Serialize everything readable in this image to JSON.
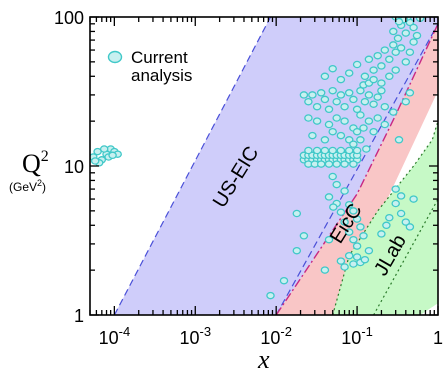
{
  "chart_data": {
    "type": "scatter",
    "x_scale": "log",
    "y_scale": "log",
    "xlim": [
      5e-05,
      1
    ],
    "ylim": [
      1,
      100
    ],
    "xlabel": "x",
    "ylabel": "Q",
    "ylabel_superscript": "2",
    "ylabel_units": "(GeV",
    "ylabel_units_superscript": "2",
    "ylabel_units_close": ")",
    "x_ticks": [
      {
        "value": 0.0001,
        "base": "10",
        "exp": "-4"
      },
      {
        "value": 0.001,
        "base": "10",
        "exp": "-3"
      },
      {
        "value": 0.01,
        "base": "10",
        "exp": "-2"
      },
      {
        "value": 0.1,
        "base": "10",
        "exp": "-1"
      },
      {
        "value": 1,
        "base": "1",
        "exp": ""
      }
    ],
    "y_ticks": [
      {
        "value": 1,
        "label": "1"
      },
      {
        "value": 10,
        "label": "10"
      },
      {
        "value": 100,
        "label": "100"
      }
    ],
    "legend": {
      "placement": "top-left",
      "line1": "Current",
      "line2": "analysis",
      "marker_color": "#c8f0f0",
      "marker_edge": "#40c8c8"
    },
    "colors": {
      "us_eic": "#cfcdfa",
      "eicc": "#f9c6c6",
      "jlab": "#c6f9c6",
      "points": "#40c8c8",
      "boundary_blue": "#4a50d8",
      "boundary_magenta": "#c82882",
      "boundary_green": "#2a7a2a"
    },
    "regions": [
      {
        "name": "US-EIC",
        "label_at": [
          0.0037,
          8
        ],
        "rotation": -58,
        "boundary": [
          [
            0.0001,
            1
          ],
          [
            0.0085,
            100
          ],
          [
            1,
            100
          ],
          [
            1,
            55
          ],
          [
            0.3,
            22
          ],
          [
            0.1,
            6.5
          ],
          [
            0.05,
            2.8
          ],
          [
            0.028,
            1
          ]
        ],
        "upper_edge": [
          [
            0.0001,
            1
          ],
          [
            0.0085,
            100
          ]
        ],
        "lower_edge": [
          [
            0.01,
            1
          ],
          [
            1,
            90
          ]
        ]
      },
      {
        "name": "EicC",
        "label_at": [
          0.085,
          3.9
        ],
        "rotation": -58,
        "boundary": [
          [
            0.01,
            1
          ],
          [
            0.1,
            6.5
          ],
          [
            0.3,
            22
          ],
          [
            1,
            90
          ],
          [
            1,
            32
          ],
          [
            0.1,
            2.2
          ],
          [
            0.05,
            1
          ]
        ],
        "upper_edge": [
          [
            0.01,
            1
          ],
          [
            0.1,
            6.5
          ],
          [
            0.3,
            22
          ],
          [
            1,
            90
          ]
        ]
      },
      {
        "name": "JLab",
        "label_at": [
          0.3,
          2.4
        ],
        "rotation": -60,
        "boundary": [
          [
            0.05,
            1
          ],
          [
            0.08,
            2.5
          ],
          [
            0.18,
            5
          ],
          [
            0.5,
            10
          ],
          [
            0.85,
            15
          ],
          [
            1,
            20
          ],
          [
            1,
            1.2
          ],
          [
            0.6,
            1
          ]
        ],
        "upper_edge": [
          [
            0.05,
            1
          ],
          [
            0.08,
            2.5
          ],
          [
            0.18,
            5
          ],
          [
            0.5,
            10
          ],
          [
            0.85,
            15
          ],
          [
            1,
            20
          ]
        ],
        "lower_edge": [
          [
            0.16,
            1
          ],
          [
            1,
            6
          ]
        ]
      }
    ],
    "points": [
      [
        5.5e-05,
        11.5
      ],
      [
        6.2e-05,
        12.5
      ],
      [
        7e-05,
        11
      ],
      [
        8e-05,
        12
      ],
      [
        9e-05,
        13
      ],
      [
        0.0001,
        12.5
      ],
      [
        0.00011,
        12
      ],
      [
        6.5e-05,
        10.5
      ],
      [
        7.5e-05,
        13
      ],
      [
        8.5e-05,
        11.5
      ],
      [
        5.8e-05,
        10.8
      ],
      [
        9.5e-05,
        11.8
      ],
      [
        0.0085,
        1.35
      ],
      [
        0.0125,
        1.7
      ],
      [
        0.018,
        2.7
      ],
      [
        0.018,
        4.8
      ],
      [
        0.022,
        3.4
      ],
      [
        0.022,
        11
      ],
      [
        0.025,
        11
      ],
      [
        0.028,
        11
      ],
      [
        0.032,
        11
      ],
      [
        0.036,
        11
      ],
      [
        0.04,
        11
      ],
      [
        0.045,
        11
      ],
      [
        0.05,
        11
      ],
      [
        0.056,
        11
      ],
      [
        0.063,
        11
      ],
      [
        0.07,
        11
      ],
      [
        0.08,
        11
      ],
      [
        0.09,
        11
      ],
      [
        0.1,
        11
      ],
      [
        0.022,
        11.8
      ],
      [
        0.025,
        11.8
      ],
      [
        0.028,
        11.8
      ],
      [
        0.032,
        11.8
      ],
      [
        0.036,
        11.8
      ],
      [
        0.04,
        11.8
      ],
      [
        0.045,
        11.8
      ],
      [
        0.05,
        11.8
      ],
      [
        0.056,
        11.8
      ],
      [
        0.063,
        11.8
      ],
      [
        0.07,
        11.8
      ],
      [
        0.08,
        11.8
      ],
      [
        0.09,
        11.8
      ],
      [
        0.1,
        11.8
      ],
      [
        0.025,
        10.3
      ],
      [
        0.03,
        10.3
      ],
      [
        0.036,
        10.3
      ],
      [
        0.045,
        10.3
      ],
      [
        0.056,
        10.3
      ],
      [
        0.07,
        10.3
      ],
      [
        0.09,
        10.3
      ],
      [
        0.025,
        12.7
      ],
      [
        0.032,
        12.7
      ],
      [
        0.04,
        12.7
      ],
      [
        0.05,
        12.7
      ],
      [
        0.063,
        12.7
      ],
      [
        0.08,
        12.7
      ],
      [
        0.1,
        12.7
      ],
      [
        0.022,
        30
      ],
      [
        0.025,
        27
      ],
      [
        0.028,
        30
      ],
      [
        0.032,
        25
      ],
      [
        0.036,
        31
      ],
      [
        0.04,
        28
      ],
      [
        0.045,
        24
      ],
      [
        0.05,
        32
      ],
      [
        0.056,
        27
      ],
      [
        0.063,
        30
      ],
      [
        0.07,
        25
      ],
      [
        0.08,
        31
      ],
      [
        0.09,
        28
      ],
      [
        0.1,
        24
      ],
      [
        0.11,
        32
      ],
      [
        0.125,
        27
      ],
      [
        0.14,
        30
      ],
      [
        0.16,
        26
      ],
      [
        0.18,
        29
      ],
      [
        0.2,
        32
      ],
      [
        0.025,
        21
      ],
      [
        0.032,
        20
      ],
      [
        0.045,
        19
      ],
      [
        0.056,
        21
      ],
      [
        0.07,
        20
      ],
      [
        0.09,
        18
      ],
      [
        0.11,
        22
      ],
      [
        0.14,
        20
      ],
      [
        0.18,
        21
      ],
      [
        0.22,
        19
      ],
      [
        0.028,
        16
      ],
      [
        0.04,
        15
      ],
      [
        0.05,
        17
      ],
      [
        0.063,
        16
      ],
      [
        0.08,
        15
      ],
      [
        0.1,
        17
      ],
      [
        0.04,
        40
      ],
      [
        0.05,
        45
      ],
      [
        0.063,
        38
      ],
      [
        0.08,
        42
      ],
      [
        0.1,
        48
      ],
      [
        0.125,
        40
      ],
      [
        0.14,
        52
      ],
      [
        0.16,
        44
      ],
      [
        0.18,
        55
      ],
      [
        0.2,
        47
      ],
      [
        0.22,
        60
      ],
      [
        0.25,
        52
      ],
      [
        0.28,
        65
      ],
      [
        0.3,
        58
      ],
      [
        0.35,
        62
      ],
      [
        0.4,
        50
      ],
      [
        0.45,
        58
      ],
      [
        0.5,
        68
      ],
      [
        0.32,
        72
      ],
      [
        0.28,
        80
      ],
      [
        0.35,
        88
      ],
      [
        0.4,
        78
      ],
      [
        0.45,
        92
      ],
      [
        0.5,
        85
      ],
      [
        0.55,
        75
      ],
      [
        0.6,
        98
      ],
      [
        0.42,
        100
      ],
      [
        0.38,
        96
      ],
      [
        0.3,
        100
      ],
      [
        0.33,
        93
      ],
      [
        0.12,
        35
      ],
      [
        0.14,
        36
      ],
      [
        0.16,
        38
      ],
      [
        0.2,
        36
      ],
      [
        0.25,
        40
      ],
      [
        0.3,
        44
      ],
      [
        0.045,
        6.2
      ],
      [
        0.056,
        5.6
      ],
      [
        0.063,
        4.9
      ],
      [
        0.07,
        4.2
      ],
      [
        0.08,
        3.6
      ],
      [
        0.09,
        3.2
      ],
      [
        0.1,
        2.9
      ],
      [
        0.08,
        5.5
      ],
      [
        0.09,
        5
      ],
      [
        0.1,
        4.4
      ],
      [
        0.11,
        3.9
      ],
      [
        0.12,
        3.4
      ],
      [
        0.063,
        2.3
      ],
      [
        0.07,
        2.1
      ],
      [
        0.08,
        2.5
      ],
      [
        0.09,
        2.2
      ],
      [
        0.1,
        2.45
      ],
      [
        0.11,
        2.25
      ],
      [
        0.125,
        2.35
      ],
      [
        0.056,
        7.5
      ],
      [
        0.07,
        6.8
      ],
      [
        0.05,
        8.5
      ],
      [
        0.045,
        3.2
      ],
      [
        0.04,
        2.0
      ],
      [
        0.0508,
        5.3
      ],
      [
        0.13,
        13
      ],
      [
        0.16,
        17
      ],
      [
        0.22,
        25
      ],
      [
        0.28,
        23
      ],
      [
        0.33,
        15
      ],
      [
        0.12,
        18
      ],
      [
        0.09,
        14
      ],
      [
        0.11,
        15
      ],
      [
        0.4,
        27
      ],
      [
        0.45,
        31
      ],
      [
        0.25,
        4.5
      ],
      [
        0.3,
        5.6
      ],
      [
        0.35,
        4.8
      ],
      [
        0.4,
        4.2
      ],
      [
        0.45,
        3.9
      ],
      [
        0.3,
        7
      ],
      [
        0.35,
        6.3
      ],
      [
        0.5,
        6
      ],
      [
        0.2,
        3.5
      ],
      [
        0.23,
        4.0
      ],
      [
        0.14,
        2.7
      ]
    ]
  }
}
